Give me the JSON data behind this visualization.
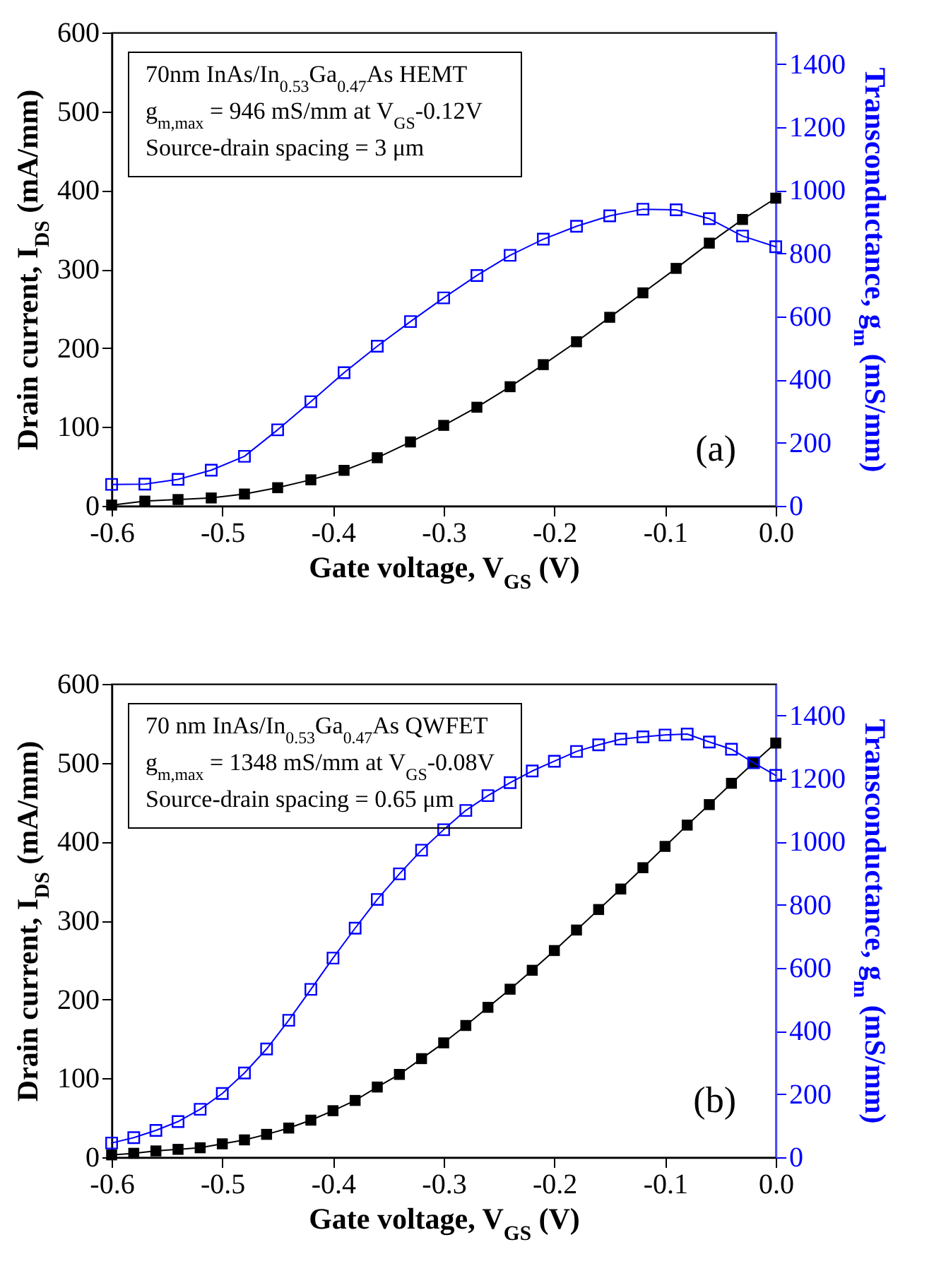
{
  "chart_data": [
    {
      "type": "line",
      "xlabel": "Gate voltage, V$_{GS}$ (V)",
      "ylabel": "Drain current, I$_{DS}$ (mA/mm)",
      "y2label": "Transconductance, g$_{m}$ (mS/mm)",
      "annotations": [
        "70nm  InAs/In$_{0.53}$Ga$_{0.47}$As HEMT",
        "g$_{m,max}$ = 946 mS/mm at V$_{GS}$-0.12V",
        "Source-drain spacing = 3 μm",
        "(a)"
      ],
      "x": [
        -0.6,
        -0.57,
        -0.54,
        -0.51,
        -0.48,
        -0.45,
        -0.42,
        -0.39,
        -0.36,
        -0.33,
        -0.3,
        -0.27,
        -0.24,
        -0.21,
        -0.18,
        -0.15,
        -0.12,
        -0.09,
        -0.06,
        -0.03,
        0
      ],
      "series": [
        {
          "color": "#000000",
          "values": [
            1,
            6,
            8,
            10,
            15,
            23,
            33,
            45,
            61,
            81,
            102,
            125,
            151,
            179,
            208,
            239,
            270,
            301,
            333,
            363,
            390
          ]
        },
        {
          "color": "#0000ff",
          "axis": "y2",
          "values": [
            68,
            69,
            84,
            113,
            157,
            241,
            330,
            422,
            506,
            584,
            659,
            730,
            794,
            845,
            886,
            919,
            940,
            938,
            910,
            855,
            821
          ]
        }
      ],
      "xlim": [
        -0.6,
        0
      ],
      "xticks": [
        -0.6,
        -0.5,
        -0.4,
        -0.3,
        -0.2,
        -0.1,
        {
          "value": 0,
          "label": "0.0"
        }
      ],
      "ylim": [
        0,
        600
      ],
      "yticks": [
        0,
        100,
        200,
        300,
        400,
        500,
        600
      ],
      "y2lim": [
        0,
        1500
      ],
      "y2ticks": [
        0,
        200,
        400,
        600,
        800,
        1000,
        1200,
        1400
      ],
      "marker": "square",
      "grid": false
    },
    {
      "type": "line",
      "xlabel": "Gate voltage, V$_{GS}$ (V)",
      "ylabel": "Drain current, I$_{DS}$ (mA/mm)",
      "y2label": "Transconductance, g$_{m}$ (mS/mm)",
      "annotations": [
        "70 nm  InAs/In$_{0.53}$Ga$_{0.47}$As QWFET",
        "g$_{m,max}$ = 1348 mS/mm at V$_{GS}$-0.08V",
        "Source-drain spacing = 0.65 μm",
        "(b)"
      ],
      "x": [
        -0.6,
        -0.58,
        -0.56,
        -0.54,
        -0.52,
        -0.5,
        -0.48,
        -0.46,
        -0.44,
        -0.42,
        -0.4,
        -0.38,
        -0.36,
        -0.34,
        -0.32,
        -0.3,
        -0.28,
        -0.26,
        -0.24,
        -0.22,
        -0.2,
        -0.18,
        -0.16,
        -0.14,
        -0.12,
        -0.1,
        -0.08,
        -0.06,
        -0.04,
        -0.02,
        0
      ],
      "series": [
        {
          "color": "#000000",
          "values": [
            3,
            5,
            8,
            10,
            12,
            17,
            22,
            29,
            37,
            47,
            59,
            72,
            89,
            105,
            125,
            145,
            167,
            190,
            213,
            237,
            262,
            288,
            314,
            340,
            367,
            394,
            421,
            447,
            474,
            500,
            525
          ]
        },
        {
          "color": "#0000ff",
          "axis": "y2",
          "values": [
            45,
            62,
            85,
            113,
            152,
            202,
            267,
            343,
            434,
            532,
            631,
            726,
            817,
            898,
            973,
            1038,
            1099,
            1146,
            1187,
            1224,
            1255,
            1286,
            1307,
            1325,
            1332,
            1338,
            1341,
            1316,
            1293,
            1250,
            1210
          ]
        }
      ],
      "xlim": [
        -0.6,
        0
      ],
      "xticks": [
        -0.6,
        -0.5,
        -0.4,
        -0.3,
        -0.2,
        -0.1,
        {
          "value": 0,
          "label": "0.0"
        }
      ],
      "ylim": [
        0,
        600
      ],
      "yticks": [
        0,
        100,
        200,
        300,
        400,
        500,
        600
      ],
      "y2lim": [
        0,
        1500
      ],
      "y2ticks": [
        0,
        200,
        400,
        600,
        800,
        1000,
        1200,
        1400
      ],
      "marker": "square",
      "grid": false
    }
  ]
}
